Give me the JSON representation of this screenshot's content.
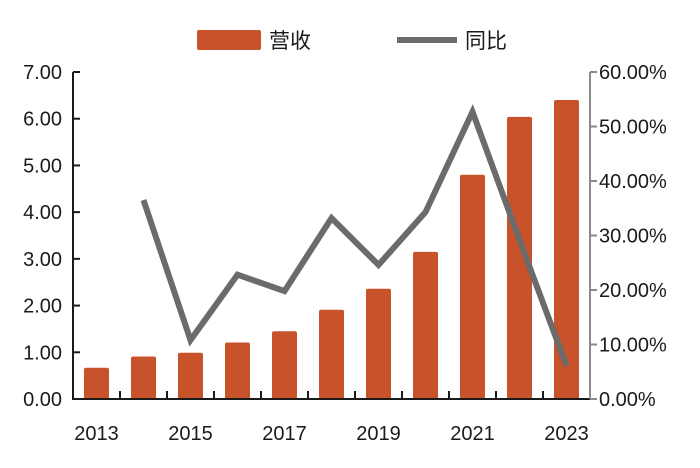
{
  "chart_data": {
    "type": "bar",
    "title": "",
    "categories": [
      "2013",
      "2014",
      "2015",
      "2016",
      "2017",
      "2018",
      "2019",
      "2020",
      "2021",
      "2022",
      "2023"
    ],
    "x_tick_labels": [
      "2013",
      "2015",
      "2017",
      "2019",
      "2021",
      "2023"
    ],
    "series": [
      {
        "name": "营收",
        "type": "bar",
        "axis": "left",
        "color": "#C8522A",
        "values": [
          0.67,
          0.91,
          0.99,
          1.21,
          1.45,
          1.91,
          2.36,
          3.15,
          4.8,
          6.04,
          6.4
        ]
      },
      {
        "name": "同比",
        "type": "line",
        "axis": "right",
        "color": "#6B6B6B",
        "values": [
          null,
          0.365,
          0.108,
          0.228,
          0.198,
          0.332,
          0.246,
          0.343,
          0.527,
          0.292,
          0.061
        ]
      }
    ],
    "y_left": {
      "label": "",
      "ylim": [
        0,
        7
      ],
      "ticks": [
        "0.00",
        "1.00",
        "2.00",
        "3.00",
        "4.00",
        "5.00",
        "6.00",
        "7.00"
      ]
    },
    "y_right": {
      "label": "",
      "ylim": [
        0,
        0.6
      ],
      "ticks": [
        "0.00%",
        "10.00%",
        "20.00%",
        "30.00%",
        "40.00%",
        "50.00%",
        "60.00%"
      ]
    },
    "xlabel": "",
    "grid": false,
    "legend_position": "top"
  },
  "legend": {
    "bar_label": "营收",
    "line_label": "同比"
  }
}
